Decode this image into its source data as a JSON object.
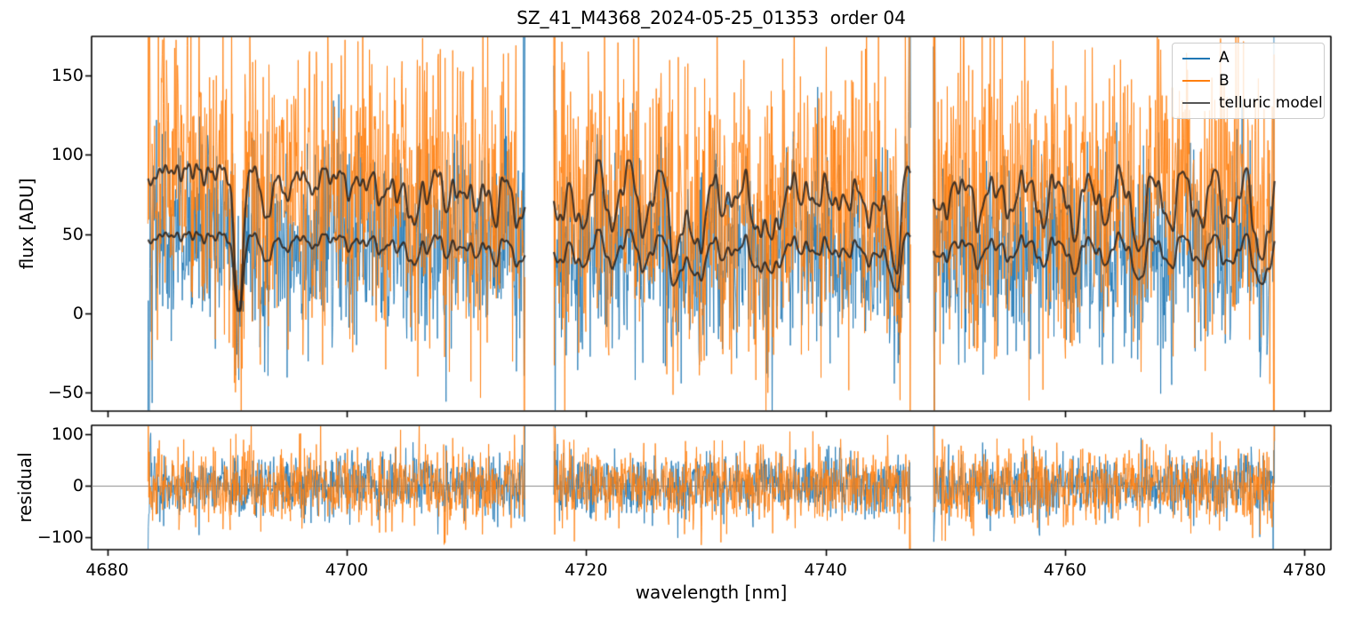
{
  "chart_data": {
    "type": "line",
    "title": "SZ_41_M4368_2024-05-25_01353  order 04",
    "xlabel": "wavelength [nm]",
    "xlim": [
      4678.7,
      4782.2
    ],
    "xticks": [
      4680,
      4700,
      4720,
      4740,
      4760,
      4780
    ],
    "xtick_labels": [
      "4680",
      "4700",
      "4720",
      "4740",
      "4760",
      "4780"
    ],
    "grid": false,
    "panels": [
      {
        "name": "flux",
        "ylabel": "flux [ADU]",
        "ylim": [
          -61.6,
          174.7
        ],
        "yticks": [
          -50,
          0,
          50,
          100,
          150
        ],
        "ytick_labels": [
          "−50",
          "0",
          "50",
          "100",
          "150"
        ]
      },
      {
        "name": "residual",
        "ylabel": "residual",
        "ylim": [
          -124,
          117
        ],
        "yticks": [
          -100,
          0,
          100
        ],
        "ytick_labels": [
          "−100",
          "0",
          "100"
        ],
        "zero_line_color": "#8a8a8a"
      }
    ],
    "legend": {
      "position": "upper right",
      "entries": [
        {
          "label": "A",
          "color": "#1f77b4"
        },
        {
          "label": "B",
          "color": "#ff7f0e"
        },
        {
          "label": "telluric model",
          "color": "#555555"
        }
      ]
    },
    "segments_nm": [
      [
        4683.4,
        4714.9
      ],
      [
        4717.3,
        4747.1
      ],
      [
        4749.0,
        4777.5
      ]
    ],
    "series": [
      {
        "name": "A",
        "color": "#1f77b4",
        "alpha": 0.85,
        "continuum_adu": 53,
        "noise_sd_adu": 31,
        "residual_sd": 30
      },
      {
        "name": "B",
        "color": "#ff7f0e",
        "alpha": 0.85,
        "continuum_adu": 97,
        "noise_sd_adu": 45,
        "residual_sd": 37
      },
      {
        "name": "telluric model",
        "plot_color": "rgba(45,38,32,0.88)",
        "legend_color": "#555555",
        "scaled_to": [
          53,
          97
        ]
      }
    ],
    "telluric_model": {
      "continuum": 0.97,
      "clamp": [
        0.03,
        0.995
      ],
      "ripple": {
        "periods_nm": [
          2.6,
          1.35,
          0.82,
          0.5
        ],
        "amplitudes": [
          0.085,
          0.055,
          0.045,
          0.018
        ],
        "phases": [
          0.3,
          1.9,
          4.1,
          0
        ],
        "growth_start_nm": 4695,
        "growth_end_nm": 4706,
        "min_gain": 0.2,
        "mean_shift": 0.09
      },
      "line_format": "[center_nm, depth, sigma_nm]",
      "absorption_lines": [
        [
          4683.2,
          0.1,
          1.0
        ],
        [
          4686.2,
          0.07,
          0.15
        ],
        [
          4687.2,
          0.08,
          0.15
        ],
        [
          4688.1,
          0.08,
          0.15
        ],
        [
          4689.0,
          0.09,
          0.15
        ],
        [
          4690.0,
          0.1,
          0.15
        ],
        [
          4691.0,
          0.95,
          0.35
        ],
        [
          4693.3,
          0.32,
          0.45
        ],
        [
          4695.0,
          0.22,
          0.4
        ],
        [
          4697.2,
          0.18,
          0.4
        ],
        [
          4700.2,
          0.16,
          0.4
        ],
        [
          4702.8,
          0.2,
          0.45
        ],
        [
          4705.4,
          0.34,
          0.5
        ],
        [
          4708.2,
          0.18,
          0.4
        ],
        [
          4710.5,
          0.25,
          0.45
        ],
        [
          4712.6,
          0.27,
          0.4
        ],
        [
          4714.4,
          0.28,
          0.35
        ],
        [
          4718.0,
          0.32,
          0.45
        ],
        [
          4719.8,
          0.28,
          0.5
        ],
        [
          4722.3,
          0.25,
          0.45
        ],
        [
          4725.0,
          0.27,
          0.5
        ],
        [
          4727.6,
          0.45,
          0.55
        ],
        [
          4729.2,
          0.5,
          0.5
        ],
        [
          4731.5,
          0.27,
          0.45
        ],
        [
          4734.3,
          0.4,
          0.55
        ],
        [
          4736.0,
          0.4,
          0.5
        ],
        [
          4739.0,
          0.25,
          0.45
        ],
        [
          4741.5,
          0.27,
          0.5
        ],
        [
          4744.0,
          0.33,
          0.5
        ],
        [
          4745.8,
          0.55,
          0.45
        ],
        [
          4749.5,
          0.32,
          0.5
        ],
        [
          4752.5,
          0.27,
          0.5
        ],
        [
          4755.0,
          0.25,
          0.5
        ],
        [
          4757.8,
          0.27,
          0.5
        ],
        [
          4760.5,
          0.32,
          0.55
        ],
        [
          4763.0,
          0.27,
          0.5
        ],
        [
          4766.0,
          0.4,
          0.6
        ],
        [
          4768.5,
          0.27,
          0.5
        ],
        [
          4771.0,
          0.27,
          0.5
        ],
        [
          4773.5,
          0.3,
          0.5
        ],
        [
          4776.3,
          0.5,
          0.6
        ]
      ]
    },
    "render": {
      "seed": 42,
      "points_per_nm": 25,
      "edge_noise_boost": 4.5,
      "edge_points": 4
    }
  }
}
